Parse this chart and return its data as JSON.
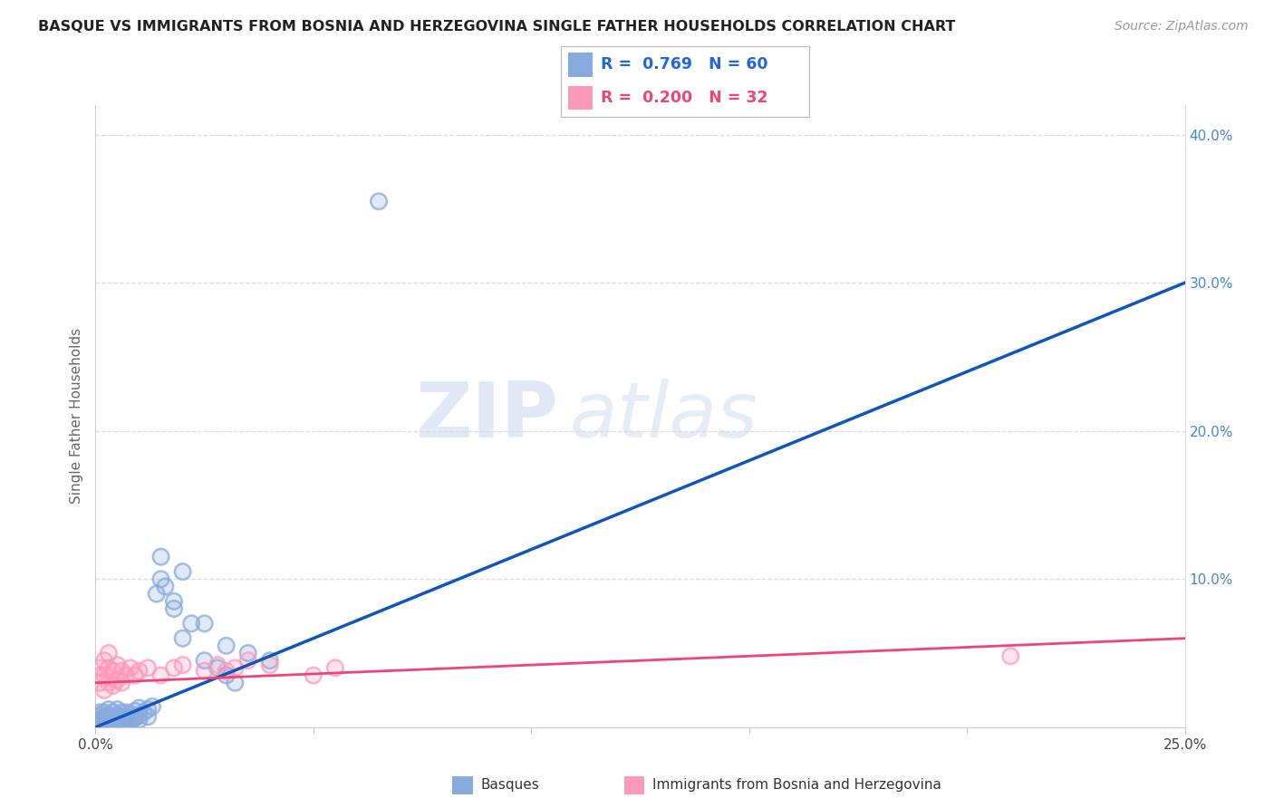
{
  "title": "BASQUE VS IMMIGRANTS FROM BOSNIA AND HERZEGOVINA SINGLE FATHER HOUSEHOLDS CORRELATION CHART",
  "source": "Source: ZipAtlas.com",
  "ylabel": "Single Father Households",
  "xlim": [
    0.0,
    0.25
  ],
  "ylim": [
    0.0,
    0.42
  ],
  "xtick_pos": [
    0.0,
    0.05,
    0.1,
    0.15,
    0.2,
    0.25
  ],
  "xtick_labels": [
    "0.0%",
    "",
    "",
    "",
    "",
    "25.0%"
  ],
  "ytick_pos": [
    0.0,
    0.1,
    0.2,
    0.3,
    0.4
  ],
  "ytick_labels_right": [
    "",
    "10.0%",
    "20.0%",
    "30.0%",
    "40.0%"
  ],
  "series1_name": "Basques",
  "series1_color": "#88AADD",
  "series1_R": 0.769,
  "series1_N": 60,
  "series1_line_color": "#1155BB",
  "series2_name": "Immigrants from Bosnia and Herzegovina",
  "series2_color": "#FF99BB",
  "series2_R": 0.2,
  "series2_N": 32,
  "series2_line_color": "#EE4477",
  "watermark_zip": "ZIP",
  "watermark_atlas": "atlas",
  "bg_color": "#ffffff",
  "grid_color": "#dddddd",
  "right_axis_color": "#4488CC",
  "title_color": "#222222",
  "source_color": "#999999",
  "title_fontsize": 11.5,
  "source_fontsize": 10,
  "legend_R1_color": "#2266DD",
  "legend_R2_color": "#EE4477",
  "basques_x": [
    0.001,
    0.001,
    0.001,
    0.002,
    0.002,
    0.002,
    0.003,
    0.003,
    0.003,
    0.003,
    0.004,
    0.004,
    0.004,
    0.005,
    0.005,
    0.005,
    0.006,
    0.006,
    0.006,
    0.007,
    0.007,
    0.008,
    0.008,
    0.009,
    0.009,
    0.01,
    0.01,
    0.011,
    0.012,
    0.013,
    0.014,
    0.015,
    0.016,
    0.018,
    0.02,
    0.022,
    0.025,
    0.028,
    0.03,
    0.032,
    0.001,
    0.002,
    0.003,
    0.003,
    0.004,
    0.005,
    0.006,
    0.007,
    0.008,
    0.009,
    0.01,
    0.012,
    0.015,
    0.018,
    0.02,
    0.025,
    0.03,
    0.035,
    0.04,
    0.065
  ],
  "basques_y": [
    0.005,
    0.008,
    0.01,
    0.005,
    0.007,
    0.01,
    0.003,
    0.006,
    0.008,
    0.012,
    0.004,
    0.007,
    0.01,
    0.005,
    0.008,
    0.012,
    0.004,
    0.007,
    0.01,
    0.006,
    0.01,
    0.005,
    0.009,
    0.007,
    0.011,
    0.008,
    0.013,
    0.01,
    0.012,
    0.014,
    0.09,
    0.115,
    0.095,
    0.08,
    0.06,
    0.07,
    0.045,
    0.04,
    0.035,
    0.03,
    0.003,
    0.004,
    0.002,
    0.005,
    0.003,
    0.004,
    0.003,
    0.005,
    0.004,
    0.006,
    0.005,
    0.007,
    0.1,
    0.085,
    0.105,
    0.07,
    0.055,
    0.05,
    0.045,
    0.355
  ],
  "bosnia_x": [
    0.001,
    0.001,
    0.001,
    0.002,
    0.002,
    0.002,
    0.003,
    0.003,
    0.003,
    0.004,
    0.004,
    0.005,
    0.005,
    0.006,
    0.006,
    0.007,
    0.008,
    0.009,
    0.01,
    0.012,
    0.015,
    0.018,
    0.02,
    0.025,
    0.028,
    0.03,
    0.032,
    0.035,
    0.04,
    0.05,
    0.055,
    0.21
  ],
  "bosnia_y": [
    0.03,
    0.035,
    0.04,
    0.025,
    0.035,
    0.045,
    0.03,
    0.04,
    0.05,
    0.028,
    0.038,
    0.032,
    0.042,
    0.03,
    0.038,
    0.035,
    0.04,
    0.035,
    0.038,
    0.04,
    0.035,
    0.04,
    0.042,
    0.038,
    0.042,
    0.038,
    0.04,
    0.045,
    0.042,
    0.035,
    0.04,
    0.048
  ],
  "blue_line_x": [
    0.0,
    0.25
  ],
  "blue_line_y": [
    0.0,
    0.3
  ],
  "pink_line_x": [
    0.0,
    0.25
  ],
  "pink_line_y": [
    0.03,
    0.06
  ]
}
